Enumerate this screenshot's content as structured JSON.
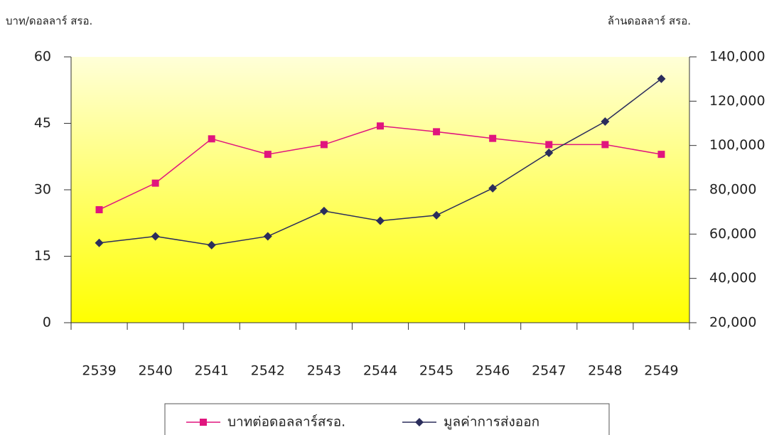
{
  "chart_data": {
    "type": "line",
    "ylabel": "บาท/ดอลลาร์ สรอ.",
    "y2label": "ล้านดอลลาร์ สรอ.",
    "categories": [
      "2539",
      "2540",
      "2541",
      "2542",
      "2543",
      "2544",
      "2545",
      "2546",
      "2547",
      "2548",
      "2549"
    ],
    "series": [
      {
        "name": "บาทต่อดอลลาร์สรอ.",
        "color": "#e0157e",
        "marker": "square",
        "values": [
          25.5,
          31.5,
          41.5,
          38,
          40.2,
          44.4,
          43.1,
          41.6,
          40.2,
          40.2,
          38
        ]
      },
      {
        "name": "มูลค่าการส่งออก",
        "color": "#2b2d5c",
        "marker": "diamond",
        "axis": "y2",
        "values": [
          56000,
          59000,
          55000,
          59000,
          70400,
          66000,
          68500,
          80700,
          96700,
          110800,
          130100
        ]
      }
    ],
    "ylim": [
      0,
      60
    ],
    "yticks": [
      0,
      15,
      30,
      45,
      60
    ],
    "y2lim": [
      20000,
      140000
    ],
    "y2ticks": [
      {
        "value": 20000,
        "label": "20,000"
      },
      {
        "value": 40000,
        "label": "40,000"
      },
      {
        "value": 60000,
        "label": "60,000"
      },
      {
        "value": 80000,
        "label": "80,000"
      },
      {
        "value": 100000,
        "label": "100,000"
      },
      {
        "value": 120000,
        "label": "120,000"
      },
      {
        "value": 140000,
        "label": "140,000"
      }
    ],
    "legend": "bottom"
  }
}
